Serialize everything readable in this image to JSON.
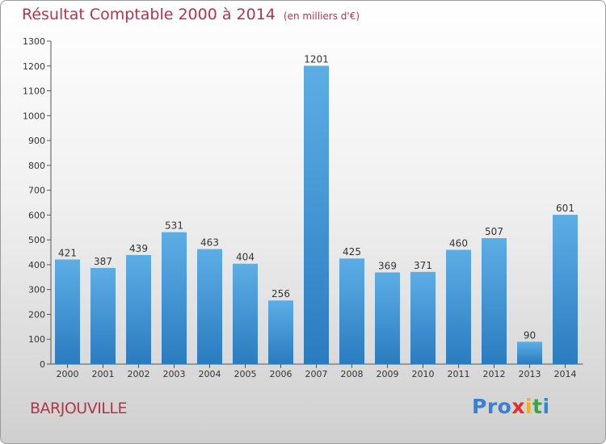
{
  "title": "Résultat Comptable 2000 à 2014",
  "units": "(en milliers d'€)",
  "city": "BARJOUVILLE",
  "logo": [
    "Pro",
    "x",
    "i",
    "t",
    "i"
  ],
  "colors": {
    "title": "#b3354a",
    "bar_light": "#5dade5",
    "bar_dark": "#2a7cc0"
  },
  "chart_data": {
    "type": "bar",
    "title": "Résultat Comptable 2000 à 2014",
    "ylabel": "(en milliers d'€)",
    "xlabel": "",
    "categories": [
      "2000",
      "2001",
      "2002",
      "2003",
      "2004",
      "2005",
      "2006",
      "2007",
      "2008",
      "2009",
      "2010",
      "2011",
      "2012",
      "2013",
      "2014"
    ],
    "values": [
      421,
      387,
      439,
      531,
      463,
      404,
      256,
      1201,
      425,
      369,
      371,
      460,
      507,
      90,
      601
    ],
    "ylim": [
      0,
      1300
    ],
    "yticks": [
      0,
      100,
      200,
      300,
      400,
      500,
      600,
      700,
      800,
      900,
      1000,
      1100,
      1200,
      1300
    ],
    "grid": false,
    "legend": "none"
  }
}
